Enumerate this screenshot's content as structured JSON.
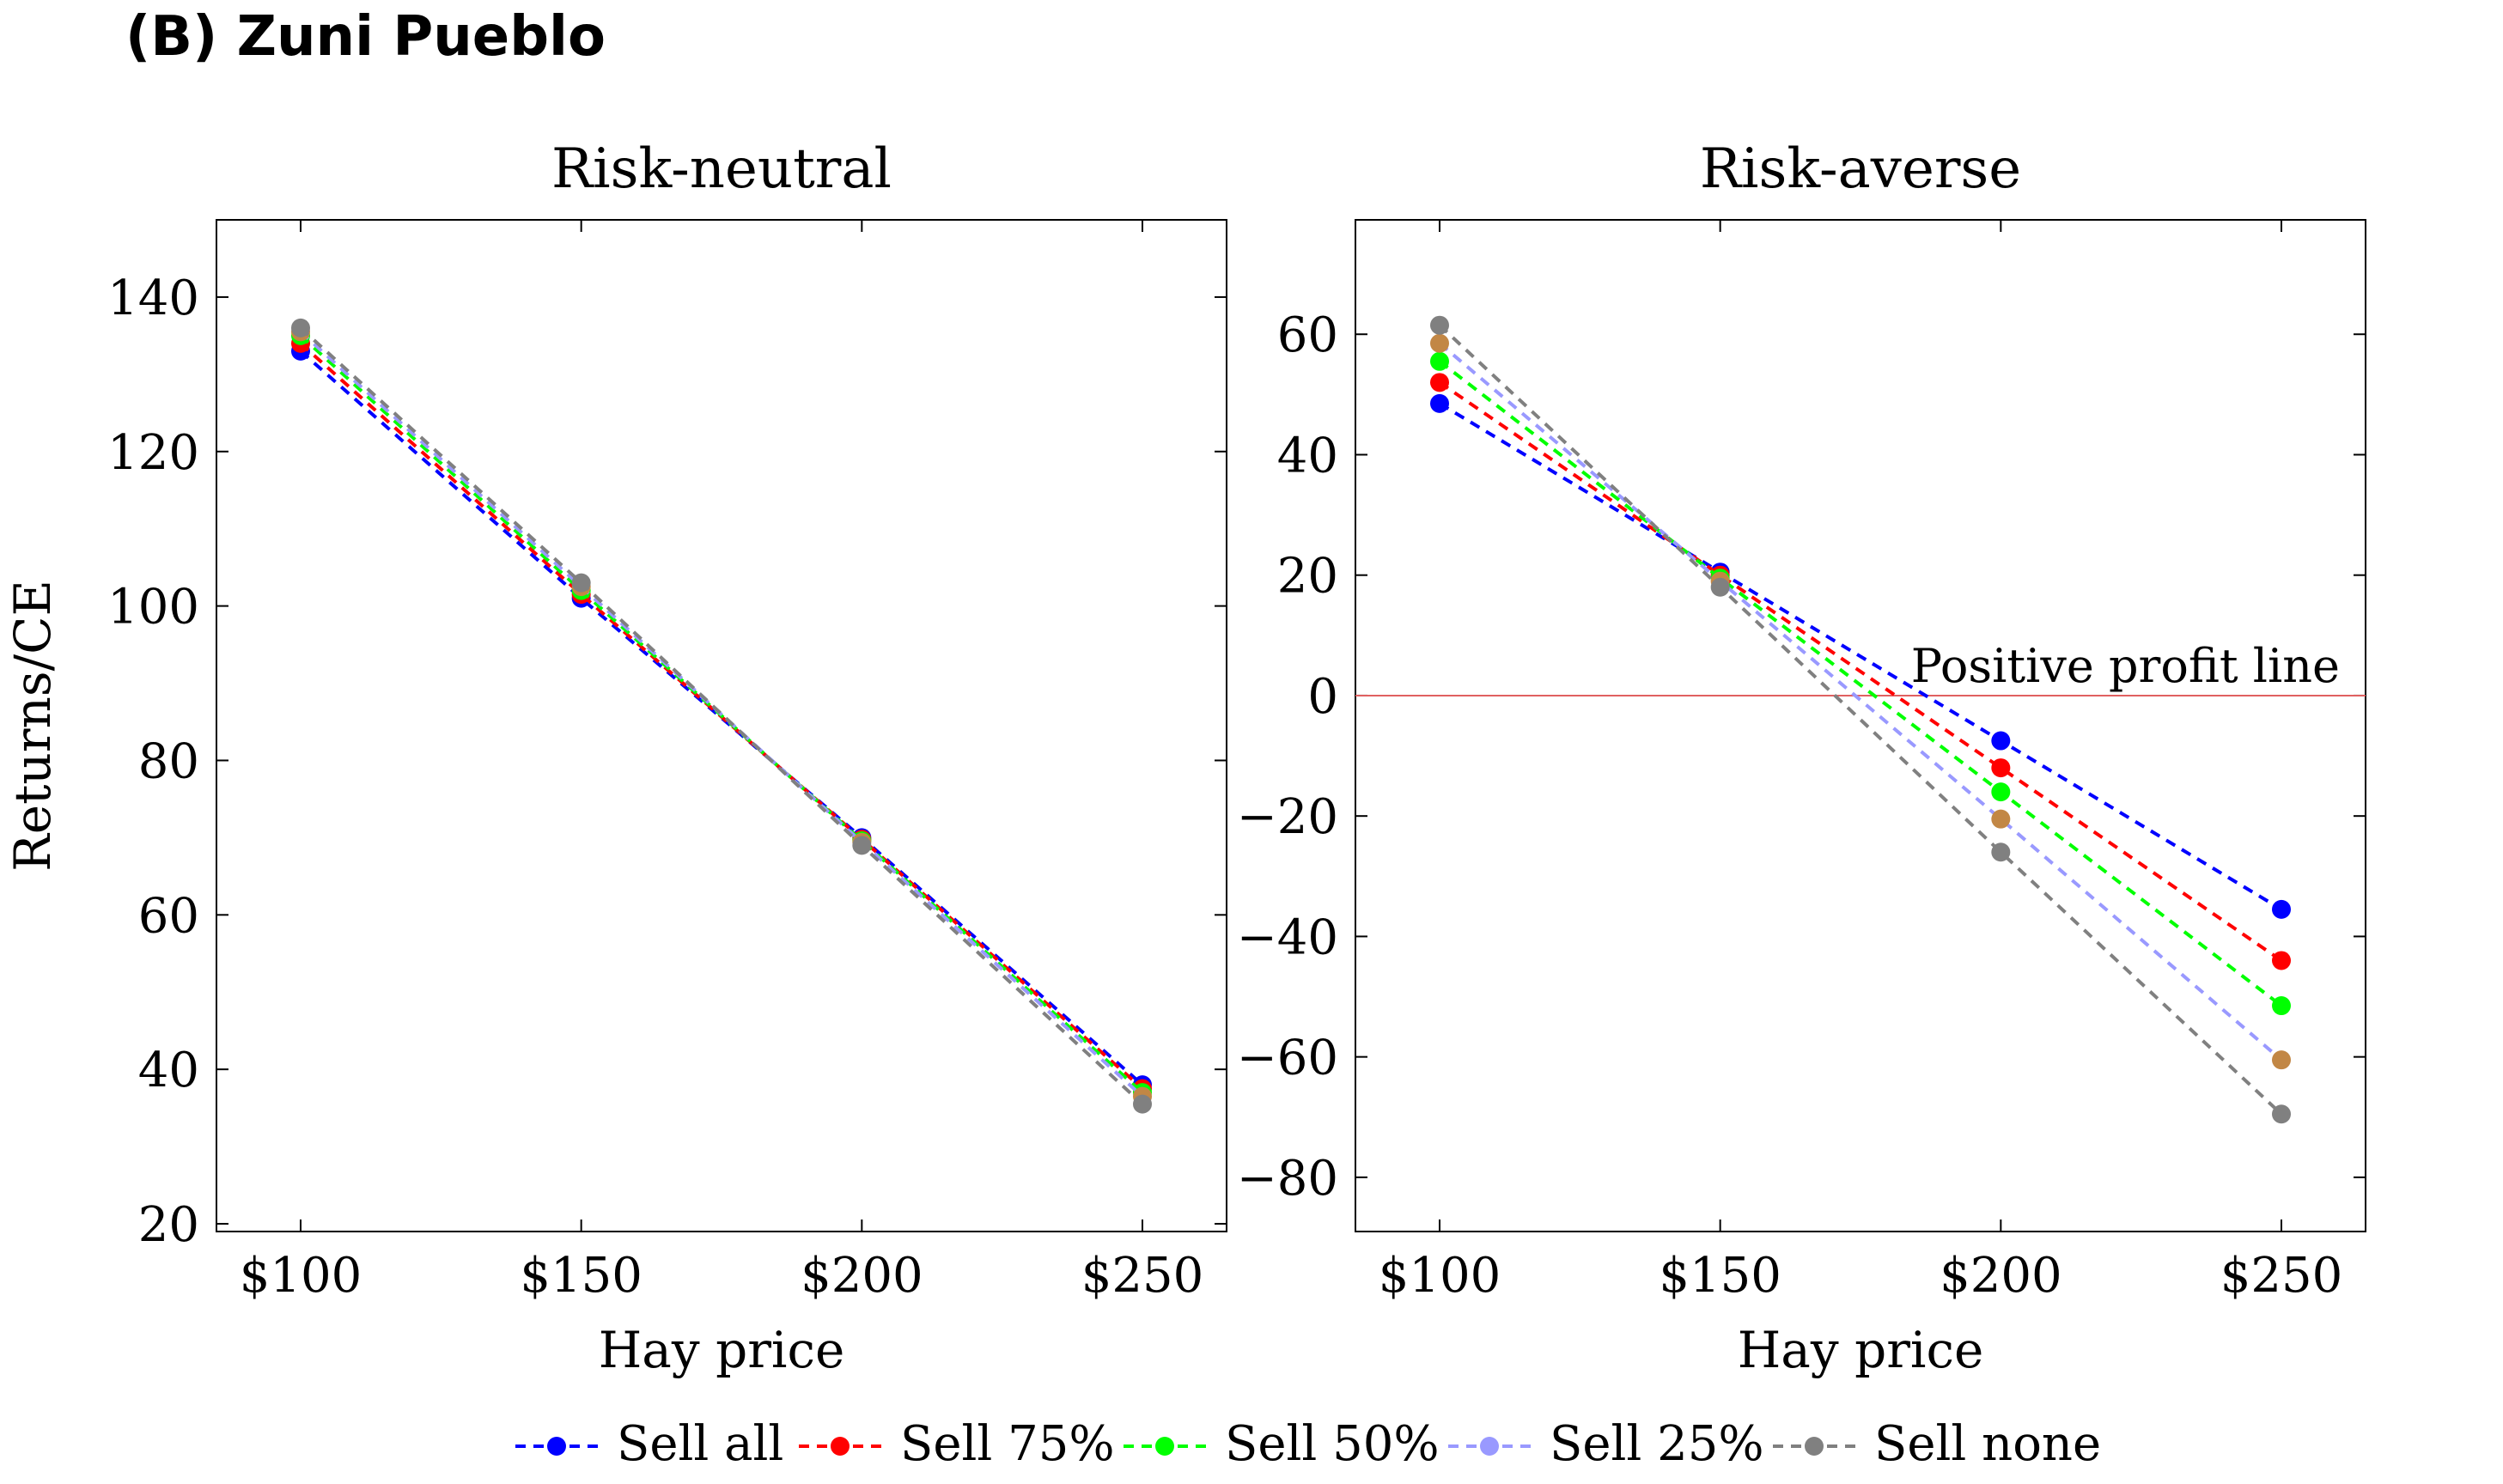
{
  "figure_title": "(B) Zuni Pueblo",
  "colors": {
    "sell_all": "#0000ff",
    "sell_75": "#ff0000",
    "sell_50": "#00ff00",
    "sell_25_line": "#9999ff",
    "sell_25_marker": "#c28745",
    "sell_none": "#808080",
    "profit_line": "#e06060"
  },
  "legend": [
    {
      "label": "Sell all",
      "color_key": "sell_all"
    },
    {
      "label": "Sell 75%",
      "color_key": "sell_75"
    },
    {
      "label": "Sell 50%",
      "color_key": "sell_50"
    },
    {
      "label": "Sell 25%",
      "color_key": "sell_25_line"
    },
    {
      "label": "Sell none",
      "color_key": "sell_none"
    }
  ],
  "chart_data": [
    {
      "type": "line",
      "title": "Risk-neutral",
      "xlabel": "Hay price",
      "ylabel": "Returns/CE",
      "x": [
        100,
        150,
        200,
        250
      ],
      "x_ticklabels": [
        "$100",
        "$150",
        "$200",
        "$250"
      ],
      "xlim": [
        85,
        265
      ],
      "ylim": [
        19,
        150
      ],
      "y_ticks": [
        20,
        40,
        60,
        80,
        100,
        120,
        140
      ],
      "y_ticklabels": [
        "20",
        "40",
        "60",
        "80",
        "100",
        "120",
        "140"
      ],
      "series": [
        {
          "name": "Sell all",
          "color_key": "sell_all",
          "values": [
            133,
            101,
            70,
            38
          ]
        },
        {
          "name": "Sell 75%",
          "color_key": "sell_75",
          "values": [
            134,
            101.5,
            69.8,
            37.5
          ]
        },
        {
          "name": "Sell 50%",
          "color_key": "sell_50",
          "values": [
            135,
            102,
            69.6,
            37
          ]
        },
        {
          "name": "Sell 25%",
          "color_key": "sell_25_line",
          "marker_key": "sell_25_marker",
          "values": [
            135.5,
            102.5,
            69.4,
            36.5
          ]
        },
        {
          "name": "Sell none",
          "color_key": "sell_none",
          "values": [
            136,
            103,
            69,
            35.5
          ]
        }
      ]
    },
    {
      "type": "line",
      "title": "Risk-averse",
      "xlabel": "Hay price",
      "ylabel": "",
      "x": [
        100,
        150,
        200,
        250
      ],
      "x_ticklabels": [
        "$100",
        "$150",
        "$200",
        "$250"
      ],
      "xlim": [
        85,
        265
      ],
      "ylim": [
        -89,
        79
      ],
      "y_ticks": [
        -80,
        -60,
        -40,
        -20,
        0,
        20,
        40,
        60
      ],
      "y_ticklabels": [
        "−80",
        "−60",
        "−40",
        "−20",
        "0",
        "20",
        "40",
        "60"
      ],
      "reference_line": {
        "y": 0,
        "label": "Positive profit line",
        "color_key": "profit_line"
      },
      "series": [
        {
          "name": "Sell all",
          "color_key": "sell_all",
          "values": [
            48.5,
            20.5,
            -7.5,
            -35.5
          ]
        },
        {
          "name": "Sell 75%",
          "color_key": "sell_75",
          "values": [
            52,
            20,
            -12,
            -44
          ]
        },
        {
          "name": "Sell 50%",
          "color_key": "sell_50",
          "values": [
            55.5,
            19.5,
            -16,
            -51.5
          ]
        },
        {
          "name": "Sell 25%",
          "color_key": "sell_25_line",
          "marker_key": "sell_25_marker",
          "values": [
            58.5,
            19,
            -20.5,
            -60.5
          ]
        },
        {
          "name": "Sell none",
          "color_key": "sell_none",
          "values": [
            61.5,
            18,
            -26,
            -69.5
          ]
        }
      ]
    }
  ]
}
